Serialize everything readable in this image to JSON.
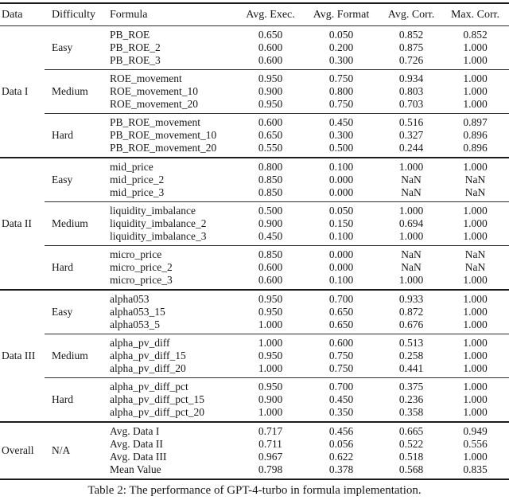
{
  "table": {
    "columns": [
      "Data",
      "Difficulty",
      "Formula",
      "Avg. Exec.",
      "Avg. Format",
      "Avg. Corr.",
      "Max. Corr."
    ],
    "sections": [
      {
        "data": "Data I",
        "blocks": [
          {
            "difficulty": "Easy",
            "rows": [
              {
                "formula": "PB_ROE",
                "values": [
                  "0.650",
                  "0.050",
                  "0.852",
                  "0.852"
                ]
              },
              {
                "formula": "PB_ROE_2",
                "values": [
                  "0.600",
                  "0.200",
                  "0.875",
                  "1.000"
                ]
              },
              {
                "formula": "PB_ROE_3",
                "values": [
                  "0.600",
                  "0.300",
                  "0.726",
                  "1.000"
                ]
              }
            ]
          },
          {
            "difficulty": "Medium",
            "rows": [
              {
                "formula": "ROE_movement",
                "values": [
                  "0.950",
                  "0.750",
                  "0.934",
                  "1.000"
                ]
              },
              {
                "formula": "ROE_movement_10",
                "values": [
                  "0.900",
                  "0.800",
                  "0.803",
                  "1.000"
                ]
              },
              {
                "formula": "ROE_movement_20",
                "values": [
                  "0.950",
                  "0.750",
                  "0.703",
                  "1.000"
                ]
              }
            ]
          },
          {
            "difficulty": "Hard",
            "rows": [
              {
                "formula": "PB_ROE_movement",
                "values": [
                  "0.600",
                  "0.450",
                  "0.516",
                  "0.897"
                ]
              },
              {
                "formula": "PB_ROE_movement_10",
                "values": [
                  "0.650",
                  "0.300",
                  "0.327",
                  "0.896"
                ]
              },
              {
                "formula": "PB_ROE_movement_20",
                "values": [
                  "0.550",
                  "0.500",
                  "0.244",
                  "0.896"
                ]
              }
            ]
          }
        ]
      },
      {
        "data": "Data II",
        "blocks": [
          {
            "difficulty": "Easy",
            "rows": [
              {
                "formula": "mid_price",
                "values": [
                  "0.800",
                  "0.100",
                  "1.000",
                  "1.000"
                ]
              },
              {
                "formula": "mid_price_2",
                "values": [
                  "0.850",
                  "0.000",
                  "NaN",
                  "NaN"
                ]
              },
              {
                "formula": "mid_price_3",
                "values": [
                  "0.850",
                  "0.000",
                  "NaN",
                  "NaN"
                ]
              }
            ]
          },
          {
            "difficulty": "Medium",
            "rows": [
              {
                "formula": "liquidity_imbalance",
                "values": [
                  "0.500",
                  "0.050",
                  "1.000",
                  "1.000"
                ]
              },
              {
                "formula": "liquidity_imbalance_2",
                "values": [
                  "0.900",
                  "0.150",
                  "0.694",
                  "1.000"
                ]
              },
              {
                "formula": "liquidity_imbalance_3",
                "values": [
                  "0.450",
                  "0.100",
                  "1.000",
                  "1.000"
                ]
              }
            ]
          },
          {
            "difficulty": "Hard",
            "rows": [
              {
                "formula": "micro_price",
                "values": [
                  "0.850",
                  "0.000",
                  "NaN",
                  "NaN"
                ]
              },
              {
                "formula": "micro_price_2",
                "values": [
                  "0.600",
                  "0.000",
                  "NaN",
                  "NaN"
                ]
              },
              {
                "formula": "micro_price_3",
                "values": [
                  "0.600",
                  "0.100",
                  "1.000",
                  "1.000"
                ]
              }
            ]
          }
        ]
      },
      {
        "data": "Data III",
        "blocks": [
          {
            "difficulty": "Easy",
            "rows": [
              {
                "formula": "alpha053",
                "values": [
                  "0.950",
                  "0.700",
                  "0.933",
                  "1.000"
                ]
              },
              {
                "formula": "alpha053_15",
                "values": [
                  "0.950",
                  "0.650",
                  "0.872",
                  "1.000"
                ]
              },
              {
                "formula": "alpha053_5",
                "values": [
                  "1.000",
                  "0.650",
                  "0.676",
                  "1.000"
                ]
              }
            ]
          },
          {
            "difficulty": "Medium",
            "rows": [
              {
                "formula": "alpha_pv_diff",
                "values": [
                  "1.000",
                  "0.600",
                  "0.513",
                  "1.000"
                ]
              },
              {
                "formula": "alpha_pv_diff_15",
                "values": [
                  "0.950",
                  "0.750",
                  "0.258",
                  "1.000"
                ]
              },
              {
                "formula": "alpha_pv_diff_20",
                "values": [
                  "1.000",
                  "0.750",
                  "0.441",
                  "1.000"
                ]
              }
            ]
          },
          {
            "difficulty": "Hard",
            "rows": [
              {
                "formula": "alpha_pv_diff_pct",
                "values": [
                  "0.950",
                  "0.700",
                  "0.375",
                  "1.000"
                ]
              },
              {
                "formula": "alpha_pv_diff_pct_15",
                "values": [
                  "0.900",
                  "0.450",
                  "0.236",
                  "1.000"
                ]
              },
              {
                "formula": "alpha_pv_diff_pct_20",
                "values": [
                  "1.000",
                  "0.350",
                  "0.358",
                  "1.000"
                ]
              }
            ]
          }
        ]
      },
      {
        "data": "Overall",
        "blocks": [
          {
            "difficulty": "N/A",
            "rows": [
              {
                "formula": "Avg. Data I",
                "values": [
                  "0.717",
                  "0.456",
                  "0.665",
                  "0.949"
                ]
              },
              {
                "formula": "Avg. Data II",
                "values": [
                  "0.711",
                  "0.056",
                  "0.522",
                  "0.556"
                ]
              },
              {
                "formula": "Avg. Data III",
                "values": [
                  "0.967",
                  "0.622",
                  "0.518",
                  "1.000"
                ]
              },
              {
                "formula": "Mean Value",
                "values": [
                  "0.798",
                  "0.378",
                  "0.568",
                  "0.835"
                ]
              }
            ]
          }
        ]
      }
    ],
    "caption": "Table 2: The performance of GPT-4-turbo in formula implementation."
  }
}
